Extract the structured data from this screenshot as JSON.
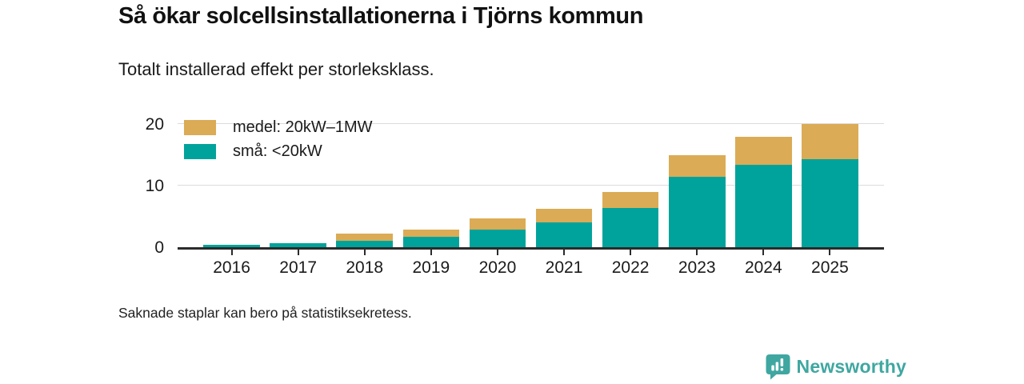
{
  "title": "Så ökar solcellsinstallationerna i Tjörns kommun",
  "subtitle": "Totalt installerad effekt per storleksklass.",
  "footnote": "Saknade staplar kan bero på statistiksekretess.",
  "branding": {
    "logo_text": "Newsworthy",
    "logo_icon": "newsworthy-chart-bubble-icon",
    "brand_color": "#3FA7A0"
  },
  "colors": {
    "medel": "#DBAB55",
    "sma": "#00A39B",
    "axis": "#2B2B2B",
    "gridline": "#DCDCDC",
    "text": "#1A1A1A"
  },
  "chart_data": {
    "type": "bar",
    "stacked": true,
    "title": "Så ökar solcellsinstallationerna i Tjörns kommun",
    "subtitle": "Totalt installerad effekt per storleksklass.",
    "categories": [
      "2016",
      "2017",
      "2018",
      "2019",
      "2020",
      "2021",
      "2022",
      "2023",
      "2024",
      "2025"
    ],
    "series": [
      {
        "name": "medel: 20kW–1MW",
        "key": "medel",
        "color": "#DBAB55",
        "values": [
          0,
          0.1,
          1.1,
          1.1,
          1.8,
          2.2,
          2.6,
          3.5,
          4.5,
          5.7
        ]
      },
      {
        "name": "små: <20kW",
        "key": "sma",
        "color": "#00A39B",
        "values": [
          0.4,
          0.6,
          1.1,
          1.7,
          2.9,
          4.0,
          6.4,
          11.5,
          13.4,
          14.3
        ]
      }
    ],
    "stack_order_bottom_to_top": [
      "sma",
      "medel"
    ],
    "totals": [
      0.4,
      0.7,
      2.2,
      2.8,
      4.7,
      6.2,
      9.0,
      15.0,
      17.9,
      20.0
    ],
    "xlabel": "",
    "ylabel": "",
    "yticks": [
      0,
      10,
      20
    ],
    "ylim": [
      0,
      21.3
    ],
    "grid": true,
    "legend_position": "top-left"
  }
}
